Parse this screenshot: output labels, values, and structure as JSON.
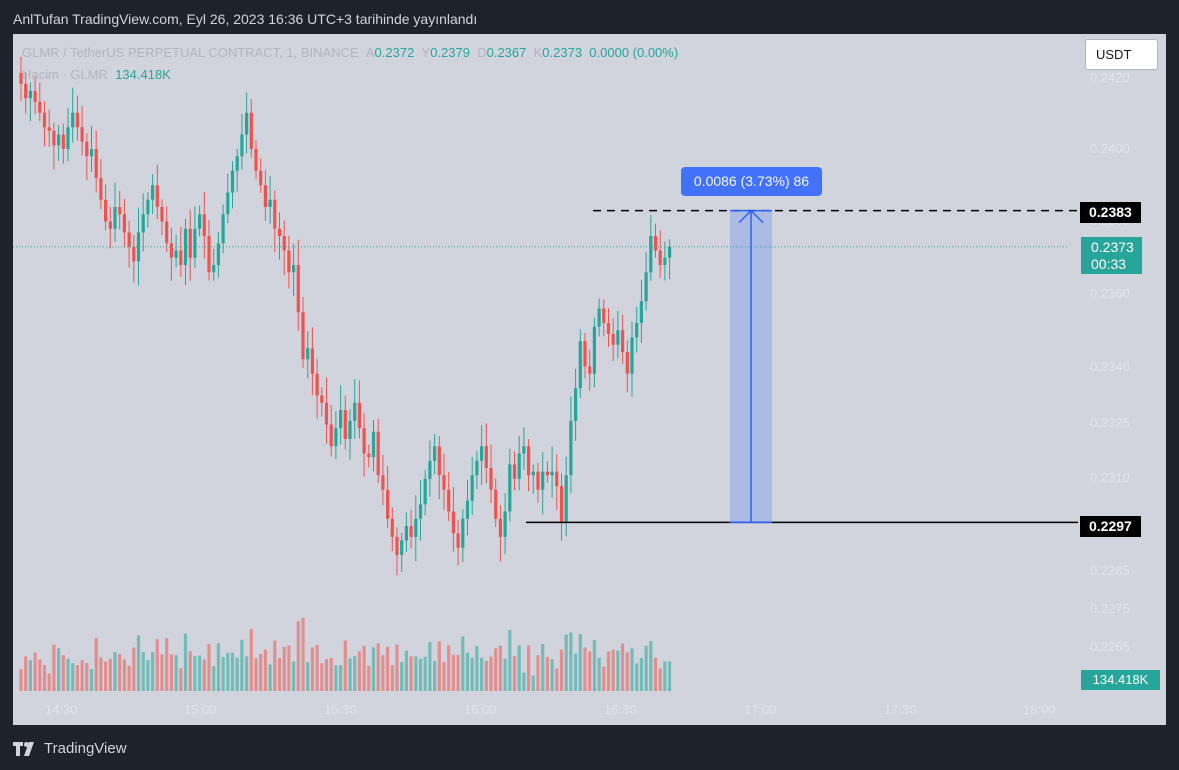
{
  "header": {
    "published_text": "AnlTufan TradingView.com, Eyl 26, 2023 16:36 UTC+3 tarihinde yayınlandı"
  },
  "legend": {
    "symbol": "GLMR / TetherUS PERPETUAL CONTRACT, 1, BINANCE",
    "open_label": "A",
    "open": "0.2372",
    "high_label": "Y",
    "high": "0.2379",
    "low_label": "D",
    "low": "0.2367",
    "close_label": "K",
    "close": "0.2373",
    "change": "0.0000 (0.00%)",
    "volume_label": "Hacim · GLMR",
    "volume": "134.418K"
  },
  "currency_button": "USDT",
  "price_axis": [
    "0.2420",
    "0.2400",
    "0.2380",
    "0.2360",
    "0.2340",
    "0.2325",
    "0.2310",
    "0.2285",
    "0.2275",
    "0.2265"
  ],
  "time_axis": [
    "14:30",
    "15:00",
    "15:30",
    "16:00",
    "16:30",
    "17:00",
    "17:30",
    "18:00"
  ],
  "price_tags": {
    "high": "0.2383",
    "low": "0.2297",
    "last": "0.2373",
    "countdown": "00:33",
    "volume": "134.418K"
  },
  "measure_label": "0.0086 (3.73%) 86",
  "footer": {
    "logo_text": "TradingView"
  },
  "colors": {
    "up": "#26a69a",
    "down": "#ef5350",
    "measure": "#2962ff",
    "background": "#d1d4dc",
    "frame": "#1e222d"
  },
  "chart_data": {
    "type": "candlestick",
    "symbol": "GLMR / TetherUS PERPETUAL CONTRACT",
    "interval": "1",
    "x_ticks": [
      "14:30",
      "15:00",
      "15:30",
      "16:00",
      "16:30",
      "17:00",
      "17:30",
      "18:00"
    ],
    "y_ticks": [
      0.242,
      0.24,
      0.238,
      0.236,
      0.234,
      0.2325,
      0.231,
      0.2285,
      0.2275,
      0.2265
    ],
    "closes": [
      0.2418,
      0.2414,
      0.2416,
      0.2413,
      0.241,
      0.2406,
      0.2405,
      0.2401,
      0.2404,
      0.24,
      0.2406,
      0.241,
      0.2406,
      0.2402,
      0.2398,
      0.24,
      0.2392,
      0.2386,
      0.238,
      0.2378,
      0.2384,
      0.2382,
      0.2377,
      0.2373,
      0.2369,
      0.2377,
      0.2382,
      0.2386,
      0.239,
      0.2384,
      0.238,
      0.2374,
      0.237,
      0.2372,
      0.2368,
      0.2378,
      0.237,
      0.2378,
      0.2382,
      0.2376,
      0.2366,
      0.2368,
      0.2374,
      0.2382,
      0.2388,
      0.2394,
      0.2398,
      0.2404,
      0.241,
      0.24,
      0.2394,
      0.239,
      0.2384,
      0.2386,
      0.2378,
      0.2376,
      0.2372,
      0.2366,
      0.2368,
      0.2355,
      0.2342,
      0.2345,
      0.2338,
      0.2332,
      0.233,
      0.2324,
      0.2318,
      0.2323,
      0.2328,
      0.232,
      0.2325,
      0.233,
      0.2323,
      0.2316,
      0.2315,
      0.2322,
      0.231,
      0.2306,
      0.2298,
      0.2293,
      0.2288,
      0.2292,
      0.2296,
      0.2293,
      0.2298,
      0.2302,
      0.2309,
      0.2314,
      0.2318,
      0.231,
      0.2306,
      0.23,
      0.2294,
      0.229,
      0.2298,
      0.2303,
      0.231,
      0.2314,
      0.2318,
      0.2312,
      0.2306,
      0.2298,
      0.2293,
      0.23,
      0.2313,
      0.2309,
      0.2316,
      0.2318,
      0.231,
      0.2311,
      0.2306,
      0.2311,
      0.231,
      0.2311,
      0.2307,
      0.2297,
      0.231,
      0.2325,
      0.2334,
      0.2347,
      0.234,
      0.2338,
      0.2351,
      0.2356,
      0.2352,
      0.2349,
      0.2346,
      0.235,
      0.2344,
      0.2338,
      0.2348,
      0.2352,
      0.2358,
      0.2366,
      0.2376,
      0.2372,
      0.2368,
      0.237,
      0.2373
    ],
    "volume_unit": "GLMR",
    "last_volume": "134.418K",
    "annotations": {
      "price_range_tool": {
        "from": 0.2297,
        "to": 0.2383,
        "label": "0.0086 (3.73%) 86"
      },
      "horizontal_lines": [
        0.2383,
        0.2297
      ]
    }
  }
}
